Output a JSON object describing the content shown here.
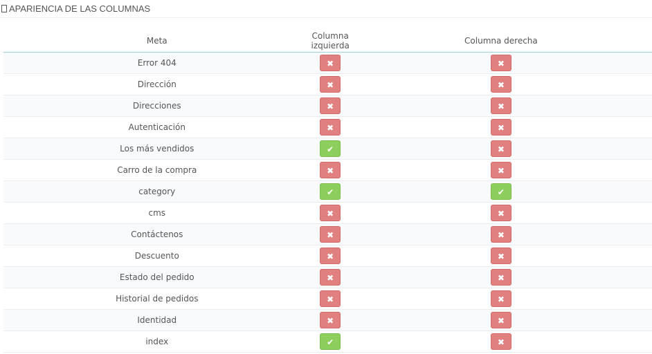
{
  "panel": {
    "title": "APARIENCIA DE LAS COLUMNAS",
    "icon": "columns-icon"
  },
  "table": {
    "headers": [
      "Meta",
      "Columna izquierda",
      "Columna derecha"
    ],
    "rows": [
      {
        "meta": "Error 404",
        "left": false,
        "right": false
      },
      {
        "meta": "Dirección",
        "left": false,
        "right": false
      },
      {
        "meta": "Direcciones",
        "left": false,
        "right": false
      },
      {
        "meta": "Autenticación",
        "left": false,
        "right": false
      },
      {
        "meta": "Los más vendidos",
        "left": true,
        "right": false
      },
      {
        "meta": "Carro de la compra",
        "left": false,
        "right": false
      },
      {
        "meta": "category",
        "left": true,
        "right": true
      },
      {
        "meta": "cms",
        "left": false,
        "right": false
      },
      {
        "meta": "Contáctenos",
        "left": false,
        "right": false
      },
      {
        "meta": "Descuento",
        "left": false,
        "right": false
      },
      {
        "meta": "Estado del pedido",
        "left": false,
        "right": false
      },
      {
        "meta": "Historial de pedidos",
        "left": false,
        "right": false
      },
      {
        "meta": "Identidad",
        "left": false,
        "right": false
      },
      {
        "meta": "index",
        "left": true,
        "right": false
      }
    ]
  },
  "colors": {
    "enabled": "#8ccf5c",
    "disabled": "#e08180"
  }
}
